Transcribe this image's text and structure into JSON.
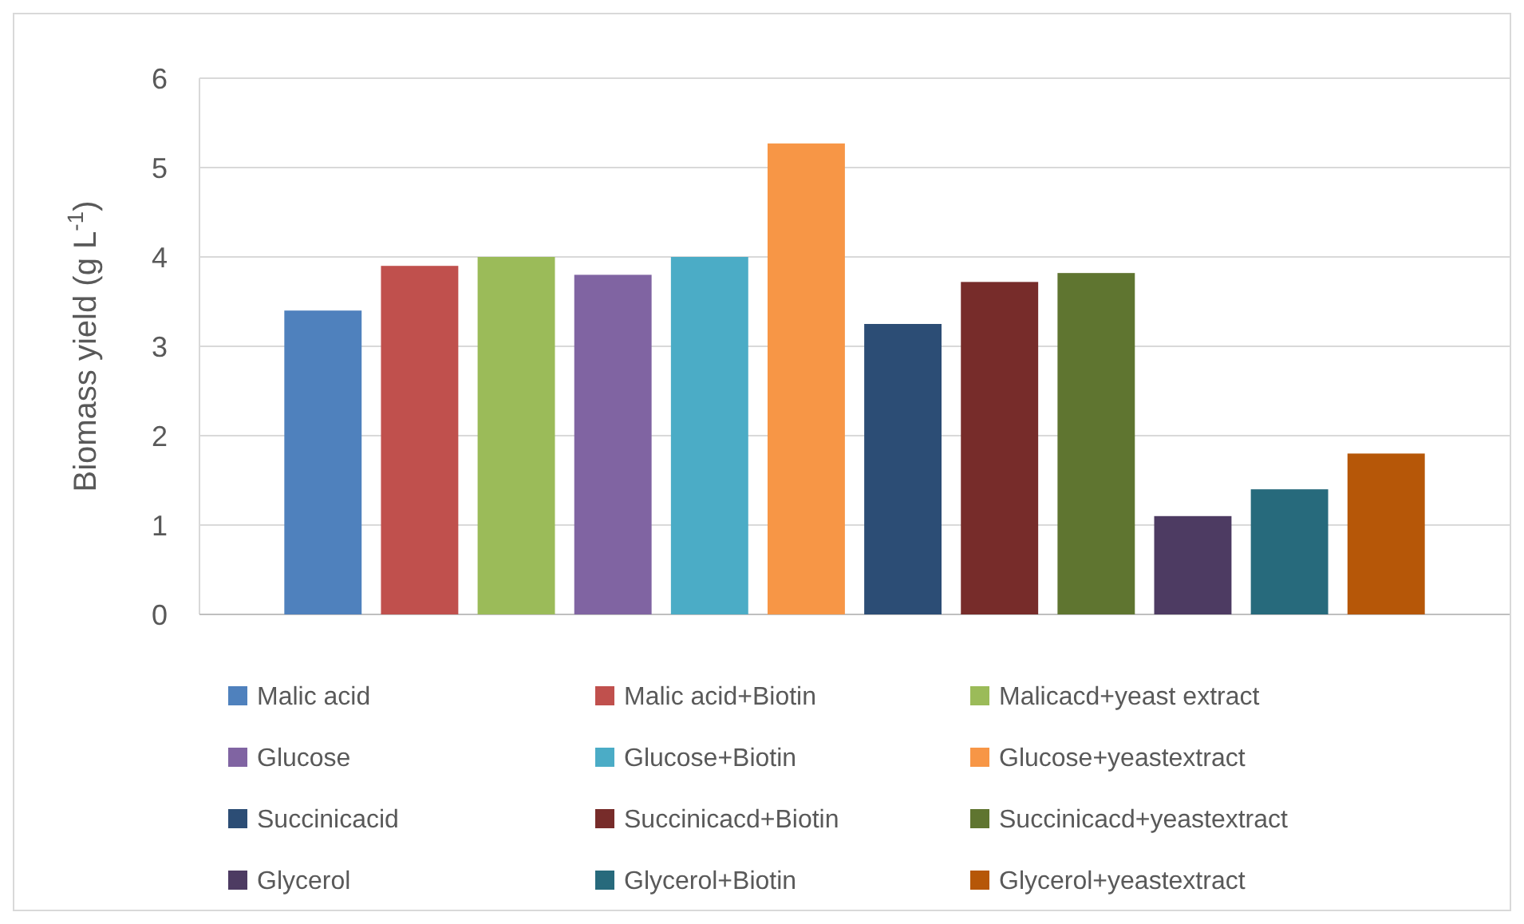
{
  "chart_data": {
    "type": "bar",
    "ylabel": "Biomass yield (g L$^{-1}$)",
    "categories": [
      null
    ],
    "ylim": [
      0,
      6
    ],
    "yticks": [
      0,
      1,
      2,
      3,
      4,
      5,
      6
    ],
    "grid": "y",
    "legend": "bottom",
    "series": [
      {
        "name": "Malic acid",
        "color": "#4f81bd",
        "values": [
          3.4
        ]
      },
      {
        "name": "Malic acid+Biotin",
        "color": "#c0504d",
        "values": [
          3.9
        ]
      },
      {
        "name": "Malicacd+yeast extract",
        "color": "#9bbb59",
        "values": [
          4.0
        ]
      },
      {
        "name": "Glucose",
        "color": "#8064a2",
        "values": [
          3.8
        ]
      },
      {
        "name": "Glucose+Biotin",
        "color": "#4bacc6",
        "values": [
          4.0
        ]
      },
      {
        "name": "Glucose+yeastextract",
        "color": "#f79646",
        "values": [
          5.27
        ]
      },
      {
        "name": "Succinicacid",
        "color": "#2c4d75",
        "values": [
          3.25
        ]
      },
      {
        "name": "Succinicacd+Biotin",
        "color": "#772c2a",
        "values": [
          3.72
        ]
      },
      {
        "name": "Succinicacd+yeastextract",
        "color": "#5f7530",
        "values": [
          3.82
        ]
      },
      {
        "name": "Glycerol",
        "color": "#4d3b62",
        "values": [
          1.1
        ]
      },
      {
        "name": "Glycerol+Biotin",
        "color": "#276a7c",
        "values": [
          1.4
        ]
      },
      {
        "name": "Glycerol+yeastextract",
        "color": "#b65708",
        "values": [
          1.8
        ]
      }
    ]
  }
}
